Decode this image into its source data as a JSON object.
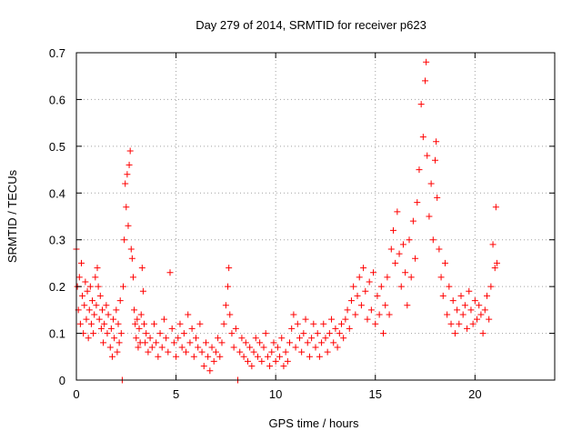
{
  "chart_data": {
    "type": "scatter",
    "title": "Day 279 of 2014, SRMTID for receiver p623",
    "xlabel": "GPS time / hours",
    "ylabel": "SRMTID / TECUs",
    "xlim": [
      0,
      24
    ],
    "ylim": [
      0,
      0.7
    ],
    "xticks": [
      0,
      5,
      10,
      15,
      20
    ],
    "yticks": [
      0,
      0.1,
      0.2,
      0.3,
      0.4,
      0.5,
      0.6,
      0.7
    ],
    "ytick_labels": [
      "0",
      "0.1",
      "0.2",
      "0.3",
      "0.4",
      "0.5",
      "0.6",
      "0.7"
    ],
    "grid": true,
    "marker": "+",
    "color": "#ff0000",
    "series": [
      {
        "name": "SRMTID",
        "points": [
          [
            0.0,
            0.28
          ],
          [
            0.05,
            0.2
          ],
          [
            0.1,
            0.15
          ],
          [
            0.15,
            0.22
          ],
          [
            0.2,
            0.12
          ],
          [
            0.25,
            0.25
          ],
          [
            0.3,
            0.18
          ],
          [
            0.35,
            0.1
          ],
          [
            0.4,
            0.16
          ],
          [
            0.45,
            0.21
          ],
          [
            0.5,
            0.13
          ],
          [
            0.55,
            0.19
          ],
          [
            0.6,
            0.09
          ],
          [
            0.65,
            0.15
          ],
          [
            0.7,
            0.2
          ],
          [
            0.75,
            0.12
          ],
          [
            0.8,
            0.17
          ],
          [
            0.85,
            0.1
          ],
          [
            0.9,
            0.14
          ],
          [
            0.95,
            0.22
          ],
          [
            1.0,
            0.16
          ],
          [
            1.05,
            0.24
          ],
          [
            1.1,
            0.2
          ],
          [
            1.15,
            0.13
          ],
          [
            1.2,
            0.18
          ],
          [
            1.25,
            0.11
          ],
          [
            1.3,
            0.15
          ],
          [
            1.35,
            0.08
          ],
          [
            1.4,
            0.12
          ],
          [
            1.5,
            0.16
          ],
          [
            1.55,
            0.1
          ],
          [
            1.6,
            0.14
          ],
          [
            1.7,
            0.07
          ],
          [
            1.75,
            0.11
          ],
          [
            1.8,
            0.05
          ],
          [
            1.85,
            0.13
          ],
          [
            1.9,
            0.09
          ],
          [
            2.0,
            0.15
          ],
          [
            2.05,
            0.06
          ],
          [
            2.1,
            0.12
          ],
          [
            2.15,
            0.08
          ],
          [
            2.2,
            0.17
          ],
          [
            2.25,
            0.1
          ],
          [
            2.3,
            0.0
          ],
          [
            2.35,
            0.2
          ],
          [
            2.4,
            0.3
          ],
          [
            2.45,
            0.42
          ],
          [
            2.5,
            0.37
          ],
          [
            2.55,
            0.44
          ],
          [
            2.6,
            0.33
          ],
          [
            2.65,
            0.46
          ],
          [
            2.7,
            0.49
          ],
          [
            2.75,
            0.28
          ],
          [
            2.8,
            0.26
          ],
          [
            2.85,
            0.22
          ],
          [
            2.9,
            0.15
          ],
          [
            2.95,
            0.12
          ],
          [
            3.0,
            0.09
          ],
          [
            3.05,
            0.13
          ],
          [
            3.1,
            0.07
          ],
          [
            3.15,
            0.11
          ],
          [
            3.2,
            0.08
          ],
          [
            3.25,
            0.14
          ],
          [
            3.3,
            0.24
          ],
          [
            3.35,
            0.19
          ],
          [
            3.4,
            0.12
          ],
          [
            3.45,
            0.08
          ],
          [
            3.5,
            0.1
          ],
          [
            3.6,
            0.06
          ],
          [
            3.7,
            0.09
          ],
          [
            3.8,
            0.07
          ],
          [
            3.9,
            0.12
          ],
          [
            4.0,
            0.08
          ],
          [
            4.1,
            0.05
          ],
          [
            4.2,
            0.1
          ],
          [
            4.3,
            0.07
          ],
          [
            4.4,
            0.13
          ],
          [
            4.5,
            0.09
          ],
          [
            4.6,
            0.06
          ],
          [
            4.7,
            0.23
          ],
          [
            4.8,
            0.11
          ],
          [
            4.9,
            0.08
          ],
          [
            5.0,
            0.05
          ],
          [
            5.1,
            0.09
          ],
          [
            5.2,
            0.12
          ],
          [
            5.3,
            0.07
          ],
          [
            5.4,
            0.1
          ],
          [
            5.5,
            0.06
          ],
          [
            5.6,
            0.14
          ],
          [
            5.7,
            0.08
          ],
          [
            5.8,
            0.11
          ],
          [
            5.9,
            0.05
          ],
          [
            6.0,
            0.09
          ],
          [
            6.1,
            0.07
          ],
          [
            6.2,
            0.12
          ],
          [
            6.3,
            0.06
          ],
          [
            6.4,
            0.03
          ],
          [
            6.5,
            0.08
          ],
          [
            6.6,
            0.05
          ],
          [
            6.7,
            0.02
          ],
          [
            6.8,
            0.07
          ],
          [
            6.9,
            0.04
          ],
          [
            7.0,
            0.06
          ],
          [
            7.1,
            0.09
          ],
          [
            7.2,
            0.05
          ],
          [
            7.3,
            0.08
          ],
          [
            7.4,
            0.12
          ],
          [
            7.5,
            0.16
          ],
          [
            7.6,
            0.2
          ],
          [
            7.65,
            0.24
          ],
          [
            7.7,
            0.14
          ],
          [
            7.8,
            0.1
          ],
          [
            7.9,
            0.07
          ],
          [
            8.0,
            0.11
          ],
          [
            8.1,
            0.0
          ],
          [
            8.2,
            0.06
          ],
          [
            8.3,
            0.09
          ],
          [
            8.4,
            0.05
          ],
          [
            8.5,
            0.08
          ],
          [
            8.6,
            0.04
          ],
          [
            8.7,
            0.07
          ],
          [
            8.8,
            0.03
          ],
          [
            8.9,
            0.06
          ],
          [
            9.0,
            0.09
          ],
          [
            9.1,
            0.05
          ],
          [
            9.2,
            0.08
          ],
          [
            9.3,
            0.04
          ],
          [
            9.4,
            0.07
          ],
          [
            9.5,
            0.1
          ],
          [
            9.6,
            0.05
          ],
          [
            9.7,
            0.03
          ],
          [
            9.8,
            0.06
          ],
          [
            9.9,
            0.08
          ],
          [
            10.0,
            0.04
          ],
          [
            10.1,
            0.07
          ],
          [
            10.2,
            0.05
          ],
          [
            10.3,
            0.09
          ],
          [
            10.4,
            0.03
          ],
          [
            10.5,
            0.06
          ],
          [
            10.6,
            0.04
          ],
          [
            10.7,
            0.08
          ],
          [
            10.8,
            0.11
          ],
          [
            10.9,
            0.14
          ],
          [
            11.0,
            0.07
          ],
          [
            11.1,
            0.12
          ],
          [
            11.2,
            0.09
          ],
          [
            11.3,
            0.06
          ],
          [
            11.4,
            0.1
          ],
          [
            11.5,
            0.13
          ],
          [
            11.6,
            0.08
          ],
          [
            11.7,
            0.05
          ],
          [
            11.8,
            0.09
          ],
          [
            11.9,
            0.12
          ],
          [
            12.0,
            0.07
          ],
          [
            12.1,
            0.1
          ],
          [
            12.2,
            0.05
          ],
          [
            12.3,
            0.08
          ],
          [
            12.4,
            0.12
          ],
          [
            12.5,
            0.09
          ],
          [
            12.6,
            0.06
          ],
          [
            12.7,
            0.1
          ],
          [
            12.8,
            0.13
          ],
          [
            12.9,
            0.08
          ],
          [
            13.0,
            0.11
          ],
          [
            13.1,
            0.07
          ],
          [
            13.2,
            0.1
          ],
          [
            13.3,
            0.12
          ],
          [
            13.4,
            0.09
          ],
          [
            13.5,
            0.13
          ],
          [
            13.6,
            0.15
          ],
          [
            13.7,
            0.11
          ],
          [
            13.8,
            0.17
          ],
          [
            13.9,
            0.2
          ],
          [
            14.0,
            0.14
          ],
          [
            14.1,
            0.18
          ],
          [
            14.2,
            0.22
          ],
          [
            14.3,
            0.16
          ],
          [
            14.4,
            0.24
          ],
          [
            14.5,
            0.19
          ],
          [
            14.6,
            0.13
          ],
          [
            14.7,
            0.21
          ],
          [
            14.8,
            0.15
          ],
          [
            14.9,
            0.23
          ],
          [
            15.0,
            0.12
          ],
          [
            15.1,
            0.18
          ],
          [
            15.2,
            0.14
          ],
          [
            15.3,
            0.2
          ],
          [
            15.4,
            0.1
          ],
          [
            15.5,
            0.16
          ],
          [
            15.6,
            0.22
          ],
          [
            15.7,
            0.14
          ],
          [
            15.8,
            0.28
          ],
          [
            15.9,
            0.32
          ],
          [
            16.0,
            0.25
          ],
          [
            16.1,
            0.36
          ],
          [
            16.2,
            0.27
          ],
          [
            16.3,
            0.2
          ],
          [
            16.4,
            0.29
          ],
          [
            16.5,
            0.23
          ],
          [
            16.6,
            0.16
          ],
          [
            16.7,
            0.3
          ],
          [
            16.8,
            0.22
          ],
          [
            16.9,
            0.34
          ],
          [
            17.0,
            0.26
          ],
          [
            17.1,
            0.38
          ],
          [
            17.2,
            0.45
          ],
          [
            17.3,
            0.59
          ],
          [
            17.4,
            0.52
          ],
          [
            17.5,
            0.64
          ],
          [
            17.55,
            0.68
          ],
          [
            17.6,
            0.48
          ],
          [
            17.7,
            0.35
          ],
          [
            17.8,
            0.42
          ],
          [
            17.9,
            0.3
          ],
          [
            18.0,
            0.47
          ],
          [
            18.05,
            0.51
          ],
          [
            18.1,
            0.39
          ],
          [
            18.2,
            0.28
          ],
          [
            18.3,
            0.22
          ],
          [
            18.4,
            0.18
          ],
          [
            18.5,
            0.25
          ],
          [
            18.6,
            0.14
          ],
          [
            18.7,
            0.2
          ],
          [
            18.8,
            0.12
          ],
          [
            18.9,
            0.17
          ],
          [
            19.0,
            0.1
          ],
          [
            19.1,
            0.15
          ],
          [
            19.2,
            0.12
          ],
          [
            19.3,
            0.18
          ],
          [
            19.4,
            0.14
          ],
          [
            19.5,
            0.16
          ],
          [
            19.6,
            0.11
          ],
          [
            19.7,
            0.19
          ],
          [
            19.8,
            0.15
          ],
          [
            19.9,
            0.12
          ],
          [
            20.0,
            0.17
          ],
          [
            20.1,
            0.13
          ],
          [
            20.2,
            0.16
          ],
          [
            20.3,
            0.14
          ],
          [
            20.4,
            0.1
          ],
          [
            20.5,
            0.15
          ],
          [
            20.6,
            0.18
          ],
          [
            20.7,
            0.13
          ],
          [
            20.8,
            0.2
          ],
          [
            20.9,
            0.29
          ],
          [
            21.0,
            0.24
          ],
          [
            21.05,
            0.37
          ],
          [
            21.1,
            0.25
          ]
        ]
      }
    ]
  }
}
